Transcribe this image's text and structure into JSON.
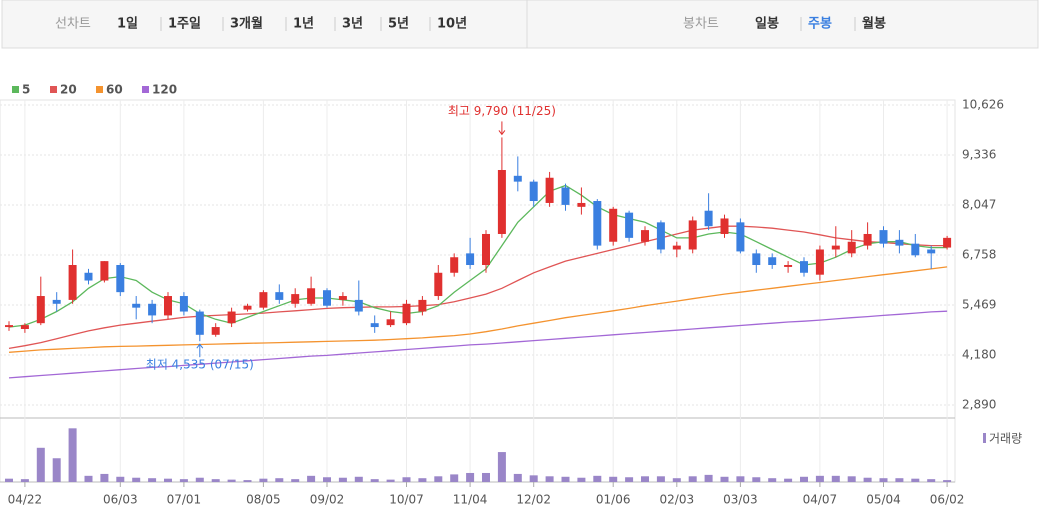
{
  "tabs": {
    "line_label": "선차트",
    "line_periods": [
      "1일",
      "1주일",
      "3개월",
      "1년",
      "3년",
      "5년",
      "10년"
    ],
    "candle_label": "봉차트",
    "candle_periods": [
      "일봉",
      "주봉",
      "월봉"
    ],
    "active_candle_index": 1
  },
  "chart_data": {
    "type": "candlestick",
    "categories": [
      null,
      "04/22",
      null,
      null,
      null,
      null,
      null,
      "06/03",
      null,
      null,
      null,
      "07/01",
      null,
      null,
      null,
      null,
      "08/05",
      null,
      null,
      null,
      "09/02",
      null,
      null,
      null,
      null,
      "10/07",
      null,
      null,
      null,
      "11/04",
      null,
      null,
      null,
      "12/02",
      null,
      null,
      null,
      null,
      "01/06",
      null,
      null,
      null,
      "02/03",
      null,
      null,
      null,
      "03/03",
      null,
      null,
      null,
      null,
      "04/07",
      null,
      null,
      null,
      "05/04",
      null,
      null,
      null,
      "06/02"
    ],
    "open": [
      4900,
      4850,
      5000,
      5600,
      5600,
      6300,
      6100,
      6500,
      5500,
      5500,
      5200,
      5700,
      5300,
      4700,
      5000,
      5350,
      5400,
      5800,
      5500,
      5500,
      5850,
      5600,
      5600,
      5000,
      4950,
      5000,
      5300,
      5700,
      6300,
      6800,
      6500,
      7300,
      8800,
      8650,
      8100,
      8500,
      8000,
      8150,
      7100,
      7850,
      7100,
      7600,
      6900,
      6900,
      7900,
      7300,
      7600,
      6800,
      6700,
      6450,
      6600,
      6250,
      6900,
      6800,
      7000,
      7400,
      7150,
      7050,
      6900,
      6950
    ],
    "high": [
      5050,
      5000,
      6200,
      5800,
      6900,
      6400,
      6600,
      6550,
      5700,
      5600,
      5800,
      5800,
      5350,
      5000,
      5400,
      5500,
      5850,
      6000,
      5900,
      6200,
      5900,
      5800,
      6100,
      5200,
      5300,
      5600,
      5700,
      6500,
      6800,
      7200,
      7400,
      9790,
      9300,
      8700,
      8900,
      8600,
      8500,
      8200,
      8000,
      7900,
      7500,
      7650,
      7100,
      7750,
      8350,
      7800,
      7700,
      6900,
      6800,
      6600,
      6700,
      7000,
      7500,
      7400,
      7600,
      7500,
      7400,
      7300,
      7000,
      7250
    ],
    "low": [
      4800,
      4750,
      4950,
      5300,
      5500,
      6000,
      6050,
      5700,
      5100,
      5000,
      5100,
      5200,
      4535,
      4650,
      4900,
      5300,
      5350,
      5500,
      5400,
      5450,
      5400,
      5450,
      5200,
      4750,
      4900,
      4950,
      5200,
      5600,
      6200,
      6400,
      6300,
      7200,
      8400,
      8000,
      8000,
      7900,
      7800,
      6900,
      7000,
      7100,
      7000,
      6800,
      6700,
      6800,
      7400,
      7200,
      6800,
      6300,
      6400,
      6300,
      6200,
      6100,
      6700,
      6700,
      6900,
      6950,
      6800,
      6700,
      6400,
      6900
    ],
    "close": [
      4950,
      4950,
      5700,
      5500,
      6500,
      6100,
      6600,
      5800,
      5400,
      5200,
      5700,
      5300,
      4700,
      4900,
      5300,
      5450,
      5800,
      5600,
      5750,
      5900,
      5450,
      5700,
      5300,
      4900,
      5100,
      5500,
      5600,
      6300,
      6700,
      6500,
      7300,
      8950,
      8650,
      8150,
      8750,
      8050,
      8100,
      7000,
      7950,
      7200,
      7400,
      6900,
      7000,
      7650,
      7500,
      7700,
      6850,
      6500,
      6500,
      6500,
      6300,
      6900,
      7000,
      7100,
      7300,
      7050,
      7000,
      6750,
      6800,
      7200
    ],
    "up_color": "#e0302f",
    "down_color": "#3a7fe0",
    "series": [
      {
        "name": "5",
        "color": "#5cb85c",
        "values": [
          4900,
          4950,
          5100,
          5300,
          5550,
          5900,
          6150,
          6200,
          6100,
          5800,
          5600,
          5500,
          5250,
          5100,
          5000,
          5150,
          5300,
          5450,
          5600,
          5650,
          5650,
          5600,
          5550,
          5400,
          5300,
          5250,
          5300,
          5450,
          5800,
          6100,
          6400,
          7000,
          7600,
          8000,
          8400,
          8550,
          8300,
          8000,
          7800,
          7700,
          7600,
          7400,
          7200,
          7200,
          7300,
          7350,
          7300,
          7100,
          6900,
          6700,
          6500,
          6550,
          6700,
          6900,
          7050,
          7100,
          7100,
          7000,
          6950,
          6950
        ]
      },
      {
        "name": "20",
        "color": "#e05555",
        "values": [
          4350,
          4420,
          4500,
          4600,
          4700,
          4800,
          4880,
          4950,
          5000,
          5050,
          5100,
          5150,
          5180,
          5200,
          5220,
          5240,
          5260,
          5290,
          5320,
          5350,
          5380,
          5400,
          5410,
          5420,
          5420,
          5430,
          5450,
          5480,
          5550,
          5650,
          5750,
          5900,
          6100,
          6300,
          6450,
          6600,
          6700,
          6800,
          6900,
          7000,
          7100,
          7200,
          7300,
          7400,
          7450,
          7500,
          7500,
          7480,
          7450,
          7400,
          7350,
          7280,
          7200,
          7150,
          7100,
          7080,
          7050,
          7020,
          7000,
          7000
        ]
      },
      {
        "name": "60",
        "color": "#f4932f",
        "values": [
          4250,
          4280,
          4310,
          4330,
          4350,
          4370,
          4390,
          4400,
          4410,
          4420,
          4430,
          4440,
          4450,
          4460,
          4470,
          4480,
          4490,
          4500,
          4510,
          4520,
          4530,
          4540,
          4550,
          4560,
          4580,
          4600,
          4620,
          4650,
          4680,
          4720,
          4780,
          4850,
          4930,
          5000,
          5070,
          5140,
          5200,
          5260,
          5320,
          5380,
          5450,
          5510,
          5570,
          5630,
          5690,
          5750,
          5800,
          5850,
          5900,
          5950,
          6000,
          6050,
          6100,
          6150,
          6200,
          6250,
          6300,
          6350,
          6400,
          6450
        ]
      },
      {
        "name": "120",
        "color": "#a368d6",
        "values": [
          3590,
          3620,
          3650,
          3680,
          3710,
          3740,
          3770,
          3800,
          3830,
          3860,
          3880,
          3910,
          3940,
          3970,
          4000,
          4030,
          4060,
          4090,
          4120,
          4150,
          4170,
          4200,
          4230,
          4260,
          4290,
          4320,
          4350,
          4380,
          4410,
          4440,
          4460,
          4490,
          4520,
          4550,
          4580,
          4610,
          4640,
          4670,
          4700,
          4730,
          4760,
          4790,
          4820,
          4850,
          4880,
          4910,
          4940,
          4970,
          5000,
          5030,
          5050,
          5080,
          5110,
          5140,
          5170,
          5200,
          5230,
          5260,
          5290,
          5310
        ]
      }
    ],
    "ylim": [
      2890,
      10626
    ],
    "yticks": [
      {
        "value": 2890,
        "label": "2,890"
      },
      {
        "value": 4180,
        "label": "4,180"
      },
      {
        "value": 5469,
        "label": "5,469"
      },
      {
        "value": 6758,
        "label": "6,758"
      },
      {
        "value": 8047,
        "label": "8,047"
      },
      {
        "value": 9336,
        "label": "9,336"
      },
      {
        "value": 10626,
        "label": "10,626"
      }
    ],
    "grid": true,
    "annotations": [
      {
        "text": "최고 9,790 (11/25)",
        "index": 31,
        "value": 9790,
        "color": "#e0302f",
        "side": "above"
      },
      {
        "text": "최저 4,535 (07/15)",
        "index": 12,
        "value": 4535,
        "color": "#3a7fe0",
        "side": "below"
      }
    ],
    "volume": {
      "name": "거래량",
      "color": "#9a86c8",
      "ylim": [
        0,
        1200
      ],
      "values": [
        70,
        60,
        720,
        500,
        1130,
        130,
        170,
        110,
        90,
        80,
        70,
        60,
        90,
        60,
        50,
        40,
        70,
        80,
        60,
        130,
        100,
        90,
        110,
        60,
        50,
        100,
        80,
        120,
        160,
        190,
        190,
        630,
        170,
        140,
        120,
        110,
        90,
        130,
        110,
        100,
        120,
        120,
        80,
        120,
        150,
        110,
        120,
        100,
        80,
        70,
        110,
        130,
        130,
        120,
        90,
        80,
        80,
        70,
        60,
        40
      ]
    }
  }
}
